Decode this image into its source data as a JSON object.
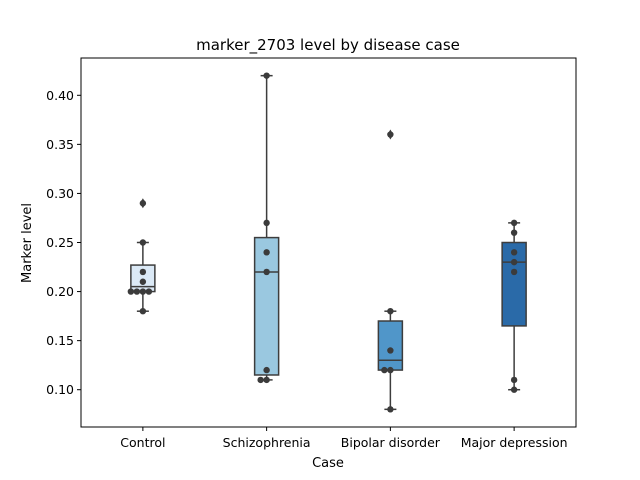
{
  "chart_data": {
    "type": "box",
    "title": "marker_2703 level by disease case",
    "xlabel": "Case",
    "ylabel": "Marker level",
    "ylim": [
      0.062,
      0.438
    ],
    "yticks": [
      0.1,
      0.15,
      0.2,
      0.25,
      0.3,
      0.35,
      0.4
    ],
    "ytick_labels": [
      "0.10",
      "0.15",
      "0.20",
      "0.25",
      "0.30",
      "0.35",
      "0.40"
    ],
    "grid": false,
    "legend": "none",
    "categories": [
      "Control",
      "Schizophrenia",
      "Bipolar disorder",
      "Major depression"
    ],
    "colors": [
      "#dbe9f6",
      "#9ac8e0",
      "#5096c9",
      "#2a6aa8"
    ],
    "point_color": "#3b3b3b",
    "boxes": [
      {
        "whisker_low": 0.18,
        "q1": 0.2,
        "median": 0.205,
        "q3": 0.227,
        "whisker_high": 0.25,
        "outliers": [
          0.29
        ]
      },
      {
        "whisker_low": 0.11,
        "q1": 0.115,
        "median": 0.22,
        "q3": 0.255,
        "whisker_high": 0.42,
        "outliers": []
      },
      {
        "whisker_low": 0.08,
        "q1": 0.12,
        "median": 0.13,
        "q3": 0.17,
        "whisker_high": 0.18,
        "outliers": [
          0.36
        ]
      },
      {
        "whisker_low": 0.1,
        "q1": 0.165,
        "median": 0.23,
        "q3": 0.25,
        "whisker_high": 0.27,
        "outliers": []
      }
    ],
    "points": [
      [
        0.29,
        0.25,
        0.22,
        0.21,
        0.2,
        0.2,
        0.2,
        0.2,
        0.18
      ],
      [
        0.42,
        0.27,
        0.24,
        0.22,
        0.12,
        0.11,
        0.11
      ],
      [
        0.36,
        0.18,
        0.14,
        0.12,
        0.12,
        0.08
      ],
      [
        0.27,
        0.26,
        0.24,
        0.23,
        0.22,
        0.11,
        0.1
      ]
    ]
  }
}
